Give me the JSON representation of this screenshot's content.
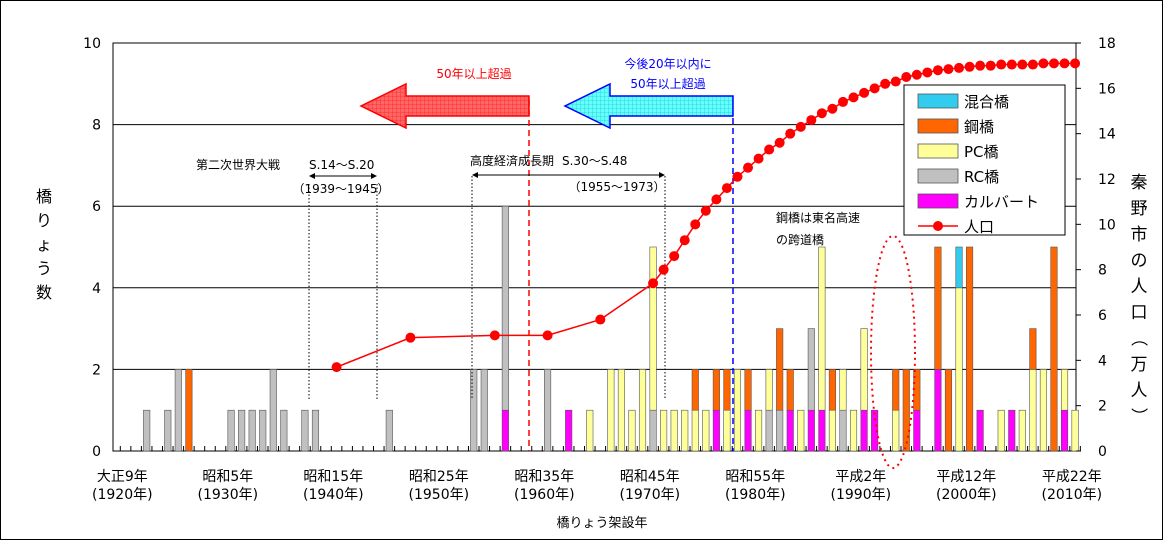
{
  "chart_data": {
    "type": "bar",
    "xlabel": "橋りょう架設年",
    "ylabel": "橋りょう数",
    "ylabel_right": "秦野市の人口（万人）",
    "ylim": [
      0,
      10
    ],
    "ylim_right": [
      0,
      18
    ],
    "yticks": [
      "0",
      "2",
      "4",
      "6",
      "8",
      "10"
    ],
    "yticks_right": [
      "0",
      "2",
      "4",
      "6",
      "8",
      "10",
      "12",
      "14",
      "16",
      "18"
    ],
    "xlim": [
      1920,
      2010
    ],
    "xtick_labels": [
      {
        "year": 1920,
        "era": "大正9年",
        "ad": "(1920年)"
      },
      {
        "year": 1930,
        "era": "昭和5年",
        "ad": "(1930年)"
      },
      {
        "year": 1940,
        "era": "昭和15年",
        "ad": "(1940年)"
      },
      {
        "year": 1950,
        "era": "昭和25年",
        "ad": "(1950年)"
      },
      {
        "year": 1960,
        "era": "昭和35年",
        "ad": "(1960年)"
      },
      {
        "year": 1970,
        "era": "昭和45年",
        "ad": "(1970年)"
      },
      {
        "year": 1980,
        "era": "昭和55年",
        "ad": "(1980年)"
      },
      {
        "year": 1990,
        "era": "平成2年",
        "ad": "(1990年)"
      },
      {
        "year": 2000,
        "era": "平成12年",
        "ad": "(2000年)"
      },
      {
        "year": 2010,
        "era": "平成22年",
        "ad": "(2010年)"
      }
    ],
    "legend_position": "right",
    "series": [
      {
        "name": "混合橋",
        "color": "#33ccee"
      },
      {
        "name": "鋼橋",
        "color": "#ff6600"
      },
      {
        "name": "PC橋",
        "color": "#ffff99"
      },
      {
        "name": "RC橋",
        "color": "#c0c0c0"
      },
      {
        "name": "カルバート",
        "color": "#ff00ff"
      },
      {
        "name": "人口",
        "color": "#ff0000"
      }
    ],
    "bars": [
      {
        "year": 1922,
        "rc": 1
      },
      {
        "year": 1924,
        "rc": 1
      },
      {
        "year": 1925,
        "rc": 2
      },
      {
        "year": 1926,
        "steel": 2
      },
      {
        "year": 1930,
        "rc": 1
      },
      {
        "year": 1931,
        "rc": 1
      },
      {
        "year": 1932,
        "rc": 1
      },
      {
        "year": 1933,
        "rc": 1
      },
      {
        "year": 1934,
        "rc": 2
      },
      {
        "year": 1935,
        "rc": 1
      },
      {
        "year": 1937,
        "rc": 1
      },
      {
        "year": 1938,
        "rc": 1
      },
      {
        "year": 1945,
        "rc": 1
      },
      {
        "year": 1953,
        "rc": 2
      },
      {
        "year": 1954,
        "rc": 2
      },
      {
        "year": 1956,
        "culvert": 1,
        "rc": 5
      },
      {
        "year": 1960,
        "rc": 2
      },
      {
        "year": 1962,
        "culvert": 1
      },
      {
        "year": 1964,
        "pc": 1
      },
      {
        "year": 1966,
        "pc": 2
      },
      {
        "year": 1967,
        "pc": 2
      },
      {
        "year": 1968,
        "pc": 1
      },
      {
        "year": 1969,
        "pc": 2
      },
      {
        "year": 1970,
        "rc": 1,
        "pc": 4
      },
      {
        "year": 1971,
        "pc": 1
      },
      {
        "year": 1972,
        "pc": 1
      },
      {
        "year": 1973,
        "pc": 1
      },
      {
        "year": 1974,
        "pc": 1,
        "steel": 1
      },
      {
        "year": 1975,
        "pc": 1
      },
      {
        "year": 1976,
        "culvert": 1,
        "steel": 1
      },
      {
        "year": 1977,
        "pc": 1,
        "steel": 1
      },
      {
        "year": 1978,
        "pc": 2
      },
      {
        "year": 1979,
        "culvert": 1,
        "steel": 1
      },
      {
        "year": 1980,
        "pc": 1
      },
      {
        "year": 1981,
        "rc": 1,
        "pc": 1
      },
      {
        "year": 1982,
        "rc": 1,
        "steel": 2
      },
      {
        "year": 1983,
        "culvert": 1,
        "steel": 1
      },
      {
        "year": 1984,
        "pc": 1
      },
      {
        "year": 1985,
        "culvert": 1,
        "rc": 2
      },
      {
        "year": 1986,
        "culvert": 1,
        "pc": 4
      },
      {
        "year": 1987,
        "pc": 1,
        "steel": 1
      },
      {
        "year": 1988,
        "rc": 1,
        "pc": 1
      },
      {
        "year": 1989,
        "pc": 1
      },
      {
        "year": 1990,
        "culvert": 1,
        "pc": 2
      },
      {
        "year": 1991,
        "culvert": 1
      },
      {
        "year": 1993,
        "pc": 1,
        "steel": 1
      },
      {
        "year": 1994,
        "steel": 2
      },
      {
        "year": 1995,
        "culvert": 1,
        "steel": 1
      },
      {
        "year": 1997,
        "culvert": 2,
        "steel": 3
      },
      {
        "year": 1998,
        "steel": 2
      },
      {
        "year": 1999,
        "pc": 4,
        "mixed": 1
      },
      {
        "year": 2000,
        "steel": 5
      },
      {
        "year": 2001,
        "culvert": 1
      },
      {
        "year": 2003,
        "pc": 1
      },
      {
        "year": 2004,
        "culvert": 1
      },
      {
        "year": 2005,
        "pc": 1
      },
      {
        "year": 2006,
        "pc": 2,
        "steel": 1
      },
      {
        "year": 2007,
        "pc": 2
      },
      {
        "year": 2008,
        "steel": 5
      },
      {
        "year": 2009,
        "pc": 1,
        "culvert": 1
      },
      {
        "year": 2010,
        "pc": 1
      }
    ],
    "population": [
      {
        "year": 1940,
        "value": 3.7
      },
      {
        "year": 1947,
        "value": 5.0
      },
      {
        "year": 1955,
        "value": 5.1
      },
      {
        "year": 1960,
        "value": 5.1
      },
      {
        "year": 1965,
        "value": 5.8
      },
      {
        "year": 1970,
        "value": 7.4
      },
      {
        "year": 1971,
        "value": 8.0
      },
      {
        "year": 1972,
        "value": 8.6
      },
      {
        "year": 1973,
        "value": 9.3
      },
      {
        "year": 1974,
        "value": 10.0
      },
      {
        "year": 1975,
        "value": 10.6
      },
      {
        "year": 1976,
        "value": 11.1
      },
      {
        "year": 1977,
        "value": 11.6
      },
      {
        "year": 1978,
        "value": 12.1
      },
      {
        "year": 1979,
        "value": 12.5
      },
      {
        "year": 1980,
        "value": 12.9
      },
      {
        "year": 1981,
        "value": 13.3
      },
      {
        "year": 1982,
        "value": 13.6
      },
      {
        "year": 1983,
        "value": 14.0
      },
      {
        "year": 1984,
        "value": 14.3
      },
      {
        "year": 1985,
        "value": 14.6
      },
      {
        "year": 1986,
        "value": 14.9
      },
      {
        "year": 1987,
        "value": 15.1
      },
      {
        "year": 1988,
        "value": 15.4
      },
      {
        "year": 1989,
        "value": 15.6
      },
      {
        "year": 1990,
        "value": 15.8
      },
      {
        "year": 1991,
        "value": 16.0
      },
      {
        "year": 1992,
        "value": 16.2
      },
      {
        "year": 1993,
        "value": 16.3
      },
      {
        "year": 1994,
        "value": 16.5
      },
      {
        "year": 1995,
        "value": 16.6
      },
      {
        "year": 1996,
        "value": 16.7
      },
      {
        "year": 1997,
        "value": 16.8
      },
      {
        "year": 1998,
        "value": 16.85
      },
      {
        "year": 1999,
        "value": 16.9
      },
      {
        "year": 2000,
        "value": 16.95
      },
      {
        "year": 2001,
        "value": 17.0
      },
      {
        "year": 2002,
        "value": 17.0
      },
      {
        "year": 2003,
        "value": 17.05
      },
      {
        "year": 2004,
        "value": 17.05
      },
      {
        "year": 2005,
        "value": 17.05
      },
      {
        "year": 2006,
        "value": 17.05
      },
      {
        "year": 2007,
        "value": 17.1
      },
      {
        "year": 2008,
        "value": 17.1
      },
      {
        "year": 2009,
        "value": 17.1
      },
      {
        "year": 2010,
        "value": 17.1
      }
    ],
    "annotations": {
      "over50": "50年以上超過",
      "within20_line1": "今後20年以内に",
      "within20_line2": "50年以上超過",
      "ww2_label": "第二次世界大戦",
      "ww2_showa": "S.14～S.20",
      "ww2_ad": "（1939～1945）",
      "growth_label": "高度経済成長期",
      "growth_showa": "S.30～S.48",
      "growth_ad": "（1955～1973）",
      "tomei_line1": "鋼橋は東名高速",
      "tomei_line2": "の跨道橋"
    }
  }
}
